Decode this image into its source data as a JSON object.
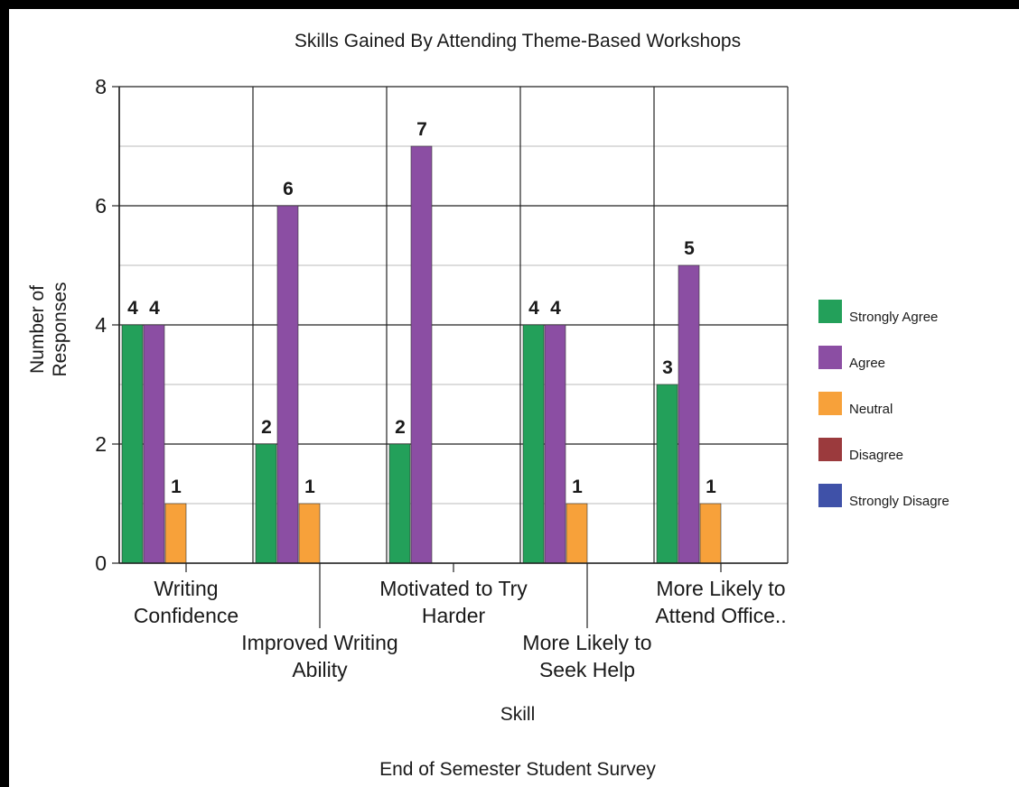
{
  "chart_data": {
    "type": "bar",
    "title": "Skills Gained By Attending Theme-Based Workshops",
    "subtitle": "End of Semester Student Survey",
    "xlabel": "Skill",
    "ylabel_lines": [
      "Number of",
      "Responses"
    ],
    "ylim": [
      0,
      8
    ],
    "yticks": [
      0,
      2,
      4,
      6,
      8
    ],
    "grid": true,
    "legend_position": "right",
    "categories": [
      [
        "Writing",
        "Confidence"
      ],
      [
        "Improved Writing",
        "Ability"
      ],
      [
        "Motivated to Try",
        "Harder"
      ],
      [
        "More Likely to",
        "Seek Help"
      ],
      [
        "More Likely to",
        "Attend Office.."
      ]
    ],
    "series": [
      {
        "name": "Strongly Agree",
        "color": "#23a05a",
        "values": [
          4,
          2,
          2,
          4,
          3
        ]
      },
      {
        "name": "Agree",
        "color": "#8b4ea3",
        "values": [
          4,
          6,
          7,
          4,
          5
        ]
      },
      {
        "name": "Neutral",
        "color": "#f7a13a",
        "values": [
          1,
          1,
          0,
          1,
          1
        ]
      },
      {
        "name": "Disagree",
        "color": "#9b3a3d",
        "values": [
          0,
          0,
          0,
          0,
          0
        ]
      },
      {
        "name": "Strongly Disagre",
        "color": "#3f51a8",
        "values": [
          0,
          0,
          0,
          0,
          0
        ]
      }
    ]
  }
}
